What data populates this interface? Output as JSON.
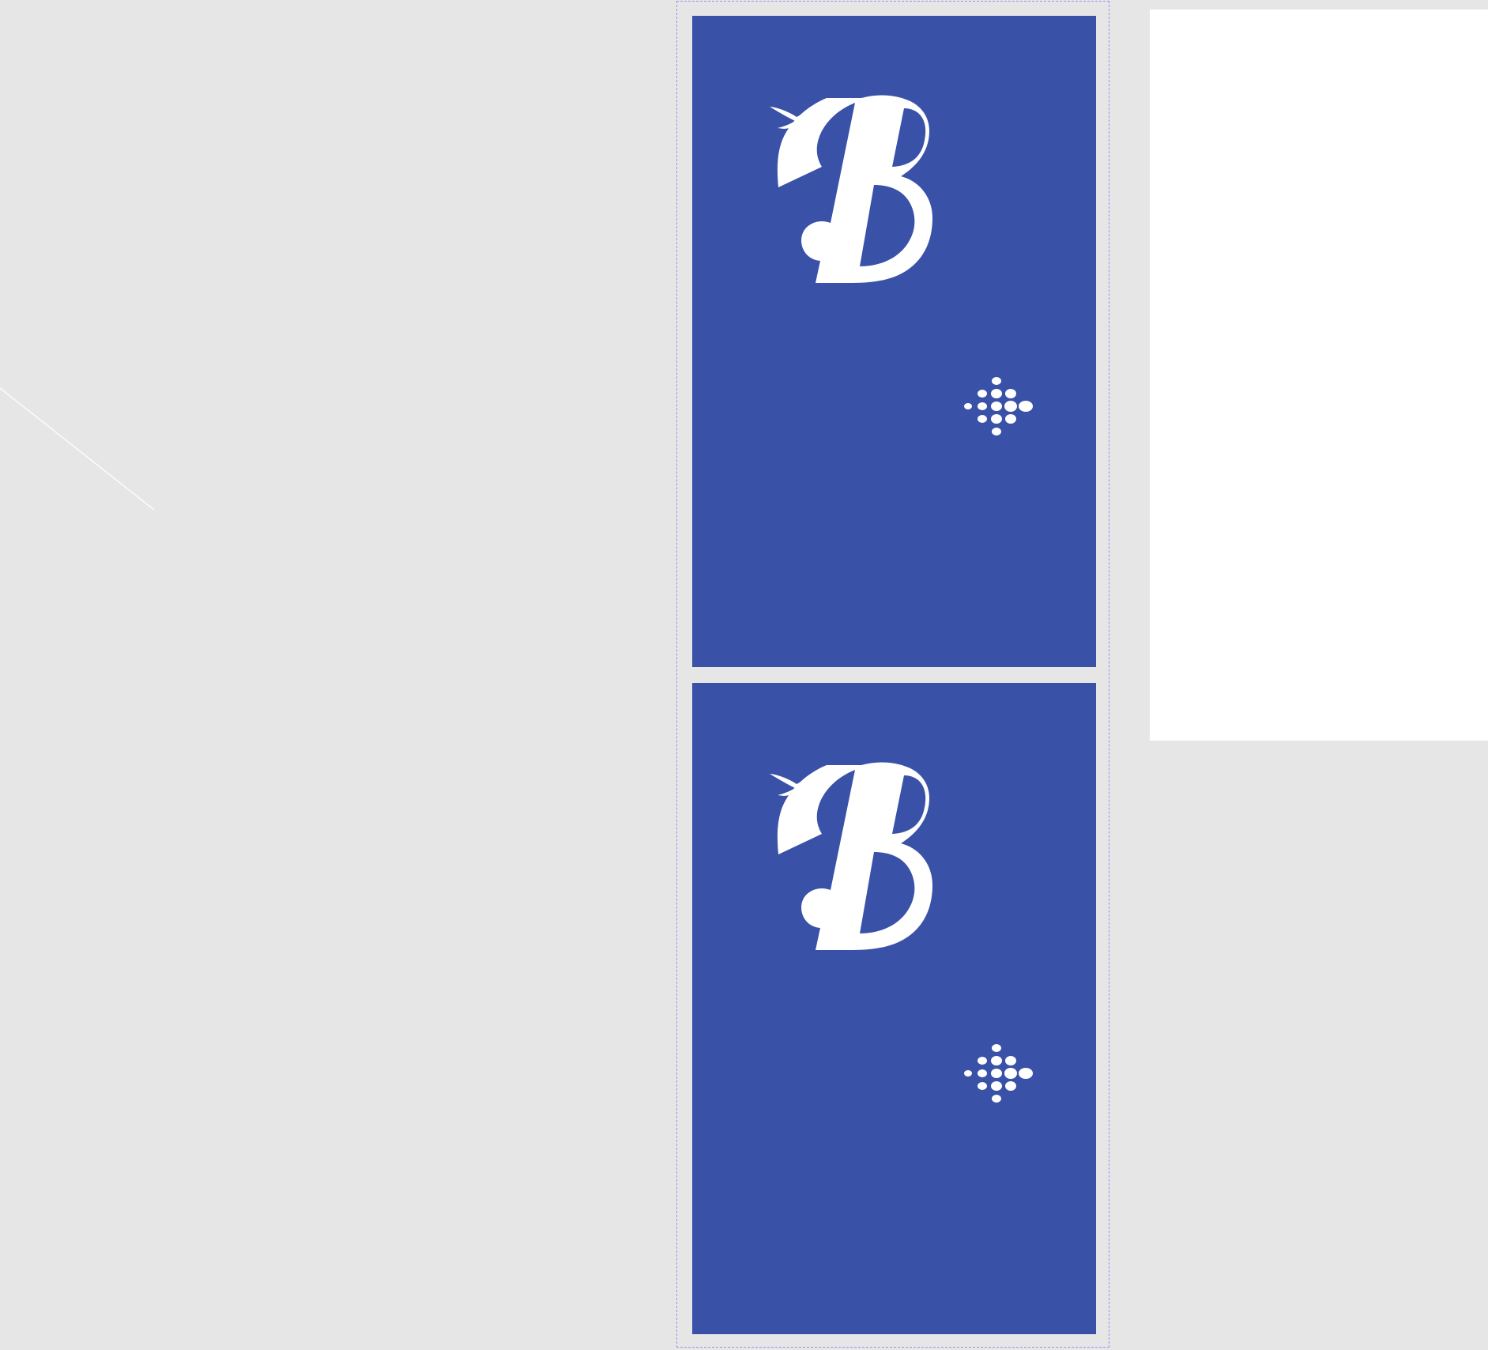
{
  "colors": {
    "workspace_background": "#e6e6e6",
    "card_background": "#3952a8",
    "logo_color": "#ffffff",
    "selection_outline": "#a98bf0",
    "side_panel_background": "#ffffff"
  },
  "cards": [
    {
      "name": "card-top",
      "icons": [
        "b-logo-icon",
        "hummingbird-icon",
        "dot-pattern-icon"
      ]
    },
    {
      "name": "card-bottom",
      "icons": [
        "b-logo-icon",
        "hummingbird-icon",
        "dot-pattern-icon"
      ]
    }
  ]
}
